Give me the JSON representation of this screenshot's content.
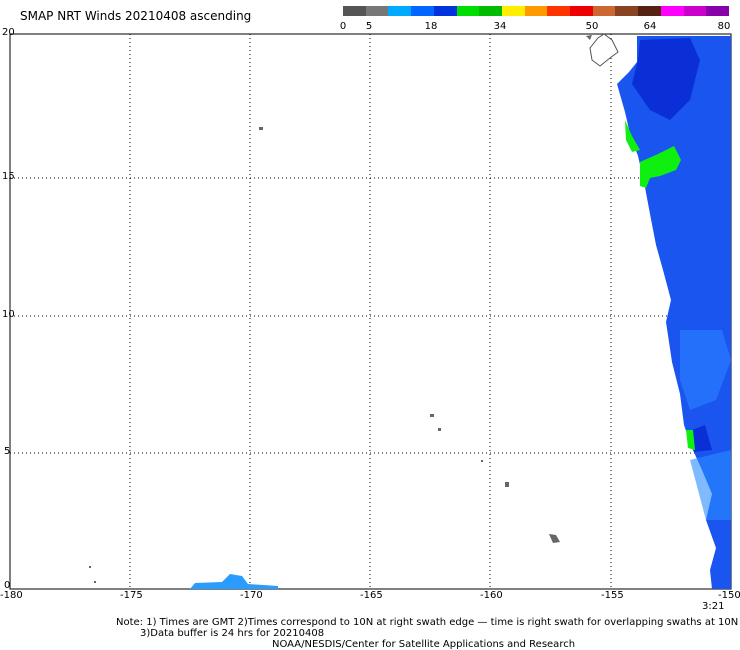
{
  "title": "SMAP NRT Winds 20210408 ascending",
  "colorbar": {
    "labels": [
      "0",
      "5",
      "18",
      "34",
      "50",
      "64",
      "80"
    ],
    "colors": [
      "#555555",
      "#777777",
      "#00aaff",
      "#0066ff",
      "#0033dd",
      "#00dd00",
      "#00bb00",
      "#ffee00",
      "#ff9900",
      "#ff3300",
      "#ee0000",
      "#cc6633",
      "#884422",
      "#552211",
      "#ff00ff",
      "#cc00cc",
      "#8800aa"
    ]
  },
  "map": {
    "lon_range": [
      -180,
      -150
    ],
    "lat_range": [
      0,
      20
    ],
    "x_ticks": [
      "-180",
      "-175",
      "-170",
      "-165",
      "-160",
      "-155",
      "-150"
    ],
    "y_ticks": [
      "20",
      "15",
      "10",
      "5",
      "0"
    ],
    "time_label": "3:21",
    "colors": {
      "wind_blue": "#1a55f0",
      "wind_dark": "#0a2fd6",
      "wind_light": "#2a8cff",
      "wind_green": "#10f010",
      "land": "#666666",
      "grid": "#000000"
    }
  },
  "notes": {
    "line1": "Note: 1) Times are GMT 2)Times correspond to 10N at right swath edge — time is right swath for overlapping swaths at 10N",
    "line2": "3)Data buffer is 24 hrs for 20210408",
    "line3": "NOAA/NESDIS/Center for Satellite Applications and Research"
  }
}
